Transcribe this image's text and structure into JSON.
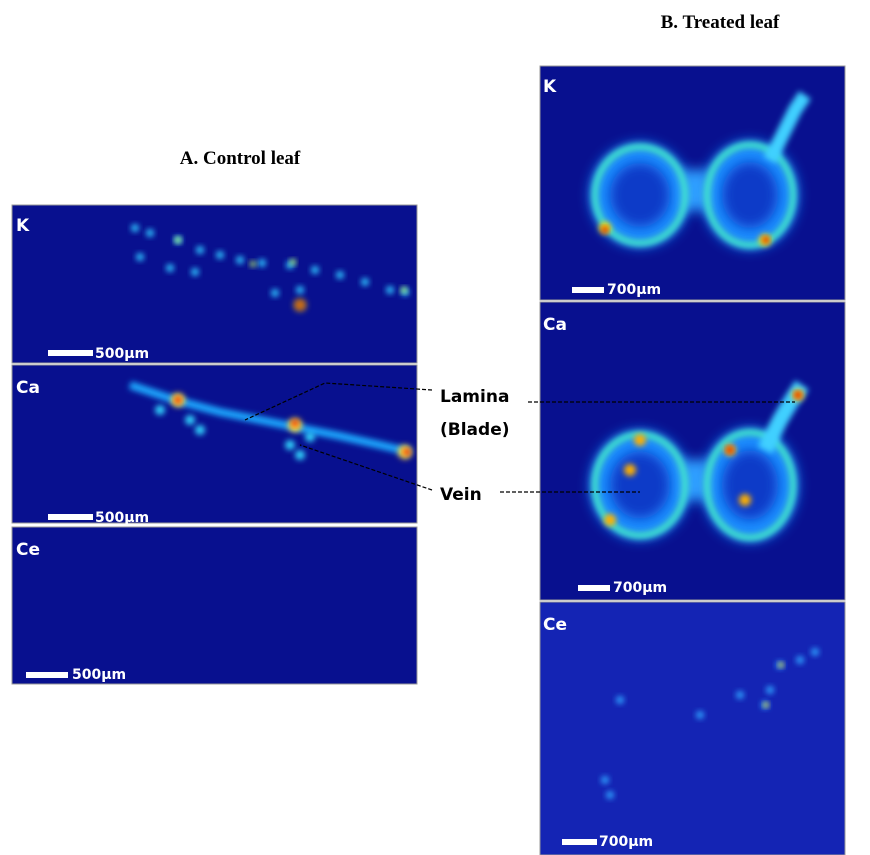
{
  "panels": [
    {
      "title": "A.  Control leaf",
      "images": [
        {
          "label": "K",
          "scale_bar": "500µm"
        },
        {
          "label": "Ca",
          "scale_bar": "500µm"
        },
        {
          "label": "Ce",
          "scale_bar": "500µm"
        }
      ]
    },
    {
      "title": "B. Treated leaf",
      "images": [
        {
          "label": "K",
          "scale_bar": "700µm"
        },
        {
          "label": "Ca",
          "scale_bar": "700µm"
        },
        {
          "label": "Ce",
          "scale_bar": "700µm"
        }
      ]
    }
  ],
  "annotations": [
    {
      "lines": [
        "Lamina",
        "(Blade)"
      ]
    },
    {
      "lines": [
        "Vein"
      ]
    }
  ]
}
